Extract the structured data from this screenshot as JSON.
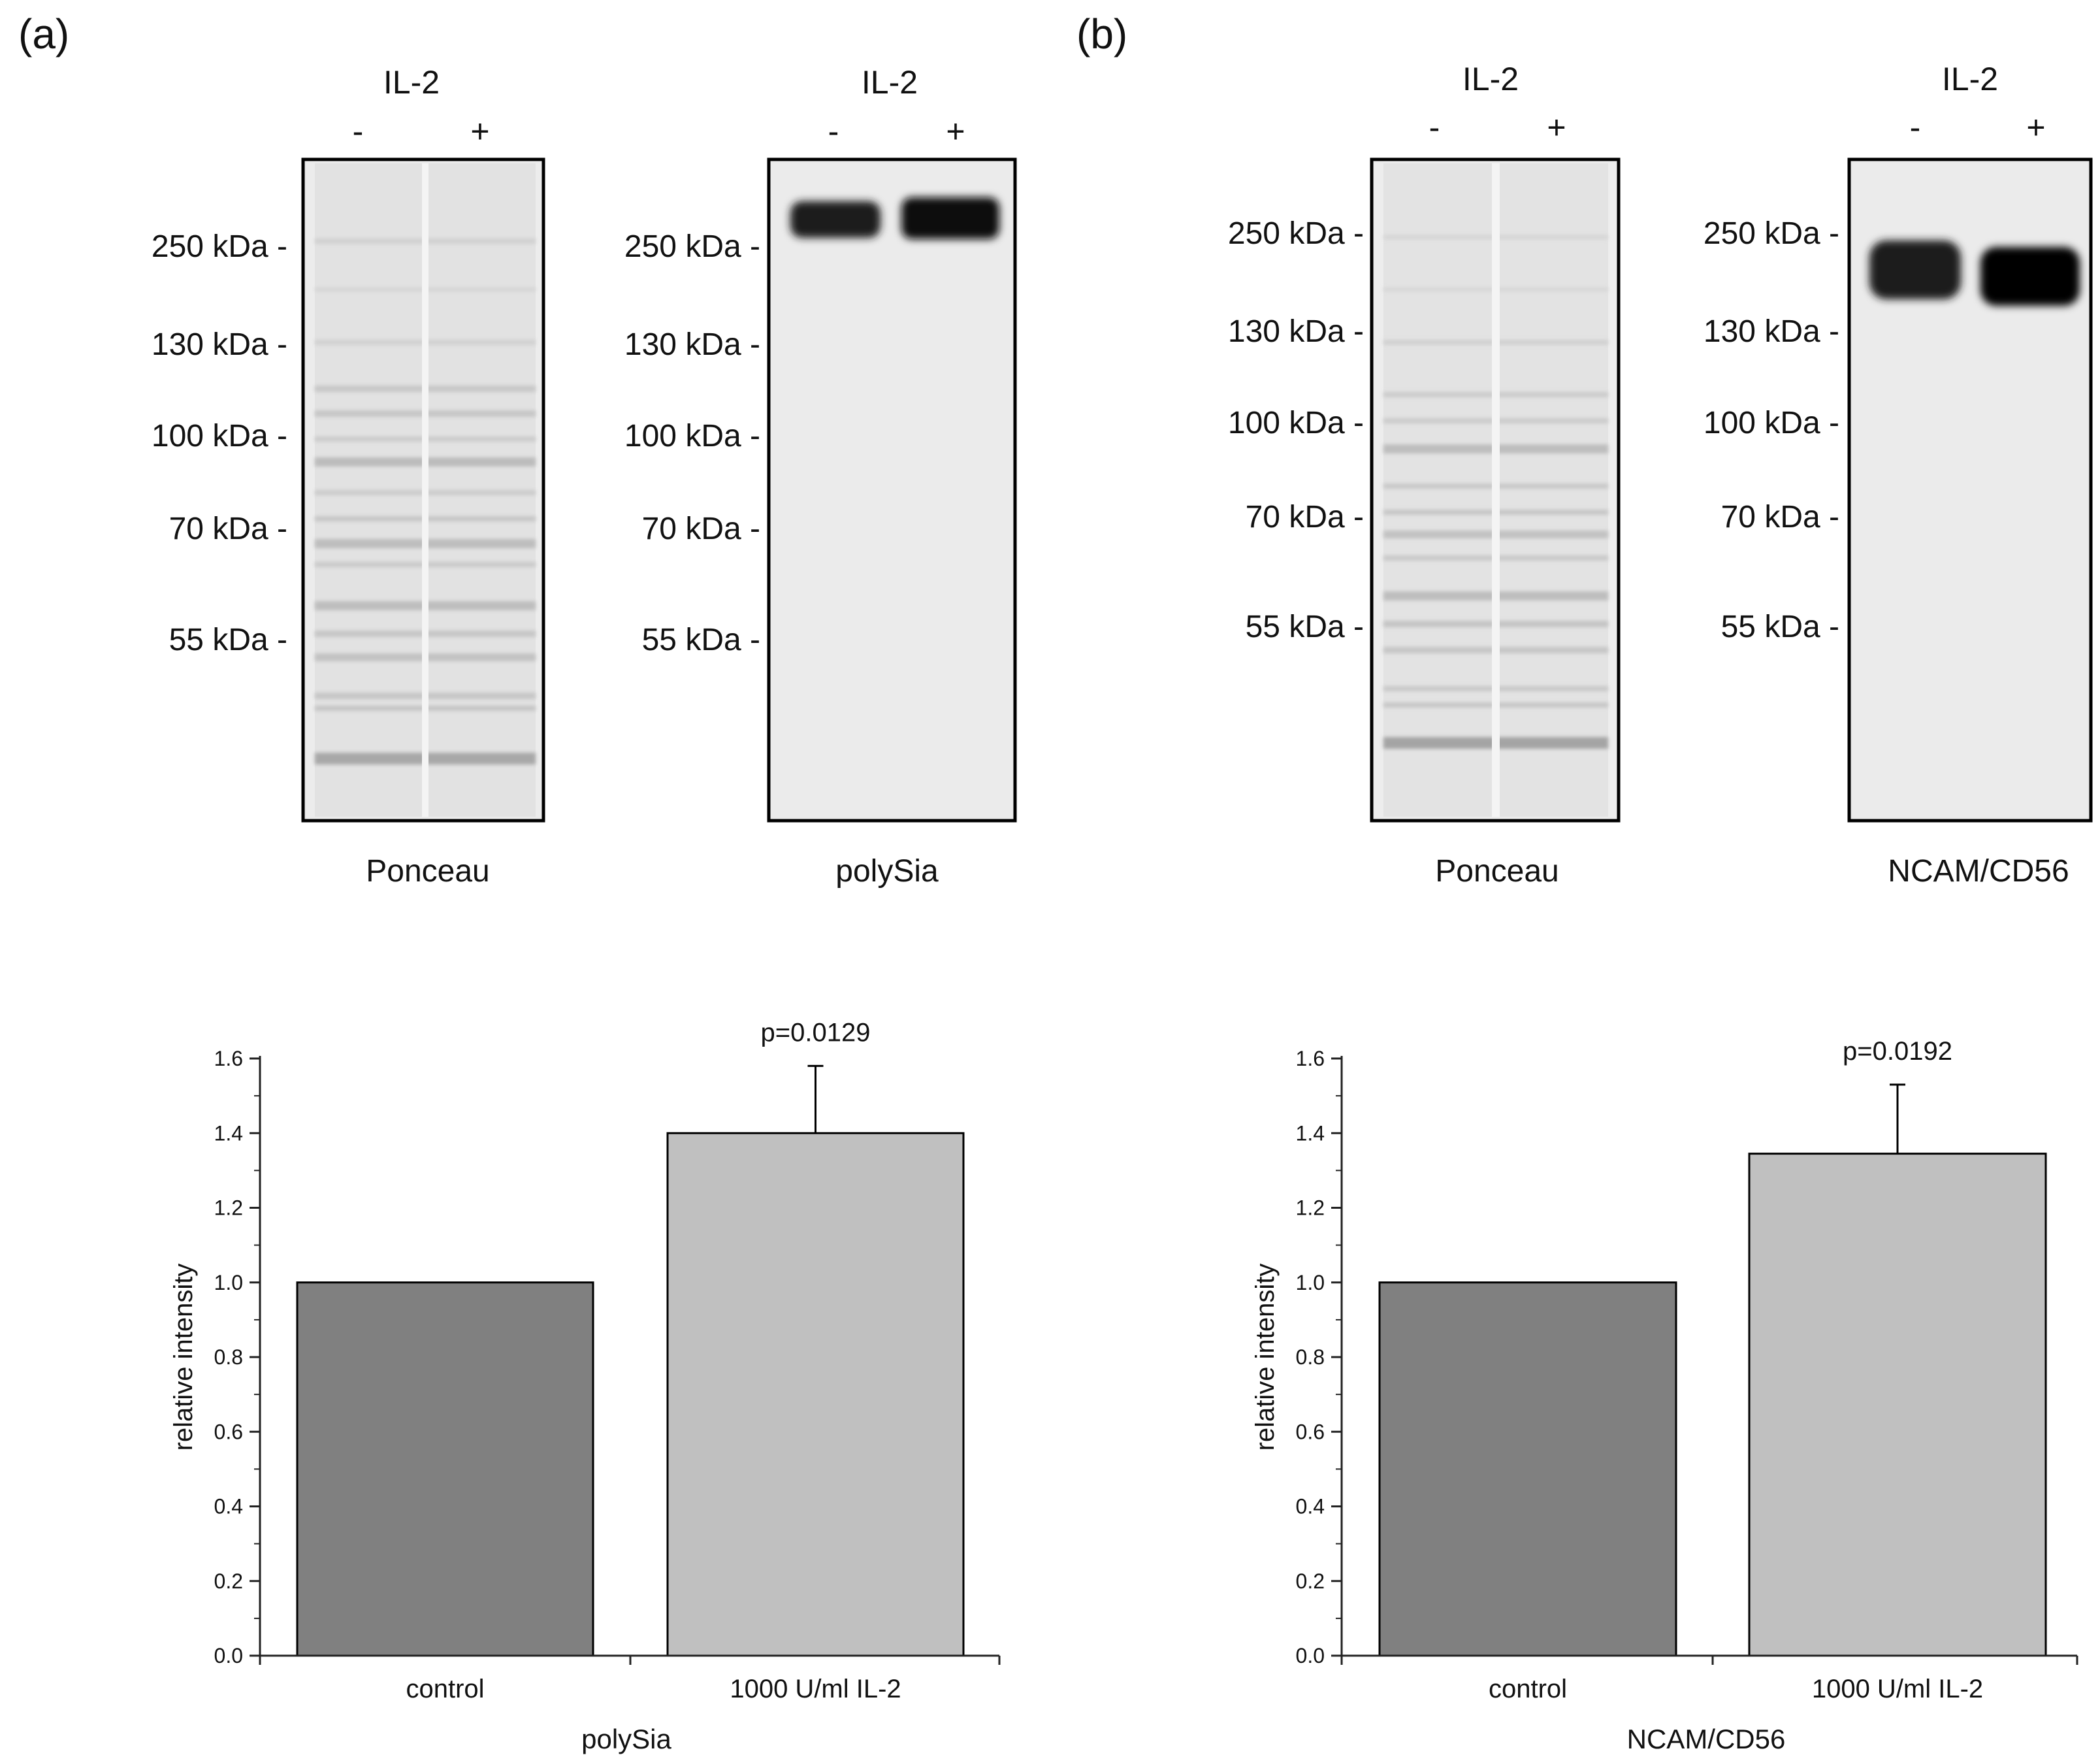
{
  "figure": {
    "panels": [
      {
        "label": "(a)",
        "blots": [
          {
            "treatment_label": "IL-2",
            "lane_labels": [
              "-",
              "+"
            ],
            "markers": [
              "250 kDa -",
              "130 kDa -",
              "100 kDa -",
              "70 kDa -",
              "55 kDa -"
            ],
            "caption": "Ponceau",
            "kind": "ponceau"
          },
          {
            "treatment_label": "IL-2",
            "lane_labels": [
              "-",
              "+"
            ],
            "markers": [
              "250 kDa -",
              "130 kDa -",
              "100 kDa -",
              "70 kDa -",
              "55 kDa -"
            ],
            "caption": "polySia",
            "kind": "antibody"
          }
        ]
      },
      {
        "label": "(b)",
        "blots": [
          {
            "treatment_label": "IL-2",
            "lane_labels": [
              "-",
              "+"
            ],
            "markers": [
              "250 kDa -",
              "130 kDa -",
              "100 kDa -",
              "70 kDa -",
              "55 kDa -"
            ],
            "caption": "Ponceau",
            "kind": "ponceau"
          },
          {
            "treatment_label": "IL-2",
            "lane_labels": [
              "-",
              "+"
            ],
            "markers": [
              "250 kDa -",
              "130 kDa -",
              "100 kDa -",
              "70 kDa -",
              "55 kDa -"
            ],
            "caption": "NCAM/CD56",
            "kind": "antibody"
          }
        ]
      }
    ]
  },
  "colors": {
    "control_bar": "#808080",
    "il2_bar": "#c0c0c0",
    "blot_background": "#ececec",
    "axis": "#222222"
  },
  "chart_data": [
    {
      "type": "bar",
      "title": "",
      "name": "polySia",
      "categories": [
        "control",
        "1000 U/ml IL-2"
      ],
      "values": [
        1.0,
        1.4
      ],
      "error_upper": [
        0,
        0.18
      ],
      "annotation": "p=0.0129",
      "xlabel": "polySia",
      "ylabel": "relative intensity",
      "ylim": [
        0.0,
        1.6
      ],
      "yticks": [
        "0.0",
        "0.2",
        "0.4",
        "0.6",
        "0.8",
        "1.0",
        "1.2",
        "1.4",
        "1.6"
      ],
      "grid": false
    },
    {
      "type": "bar",
      "title": "",
      "name": "NCAM/CD56",
      "categories": [
        "control",
        "1000 U/ml IL-2"
      ],
      "values": [
        1.0,
        1.345
      ],
      "error_upper": [
        0,
        0.185
      ],
      "annotation": "p=0.0192",
      "xlabel": "NCAM/CD56",
      "ylabel": "relative intensity",
      "ylim": [
        0.0,
        1.6
      ],
      "yticks": [
        "0.0",
        "0.2",
        "0.4",
        "0.6",
        "0.8",
        "1.0",
        "1.2",
        "1.4",
        "1.6"
      ],
      "grid": false
    }
  ]
}
